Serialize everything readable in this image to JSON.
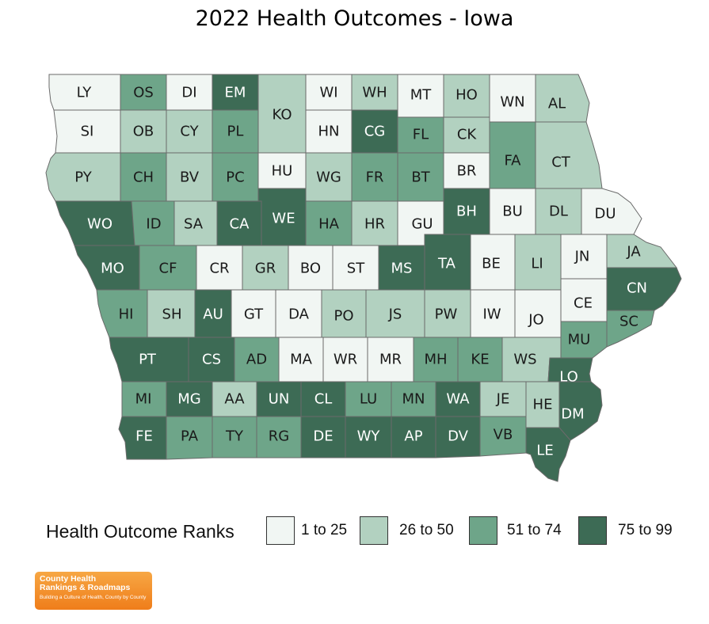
{
  "title": "2022 Health Outcomes - Iowa",
  "colors": {
    "1": "#f1f6f3",
    "2": "#b2d1c0",
    "3": "#6ea589",
    "4": "#3d6b55"
  },
  "legend": {
    "title": "Health Outcome Ranks",
    "classes": [
      {
        "label": "1 to 25",
        "color": "#f1f6f3"
      },
      {
        "label": "26 to 50",
        "color": "#b2d1c0"
      },
      {
        "label": "51 to 74",
        "color": "#6ea589"
      },
      {
        "label": "75 to 99",
        "color": "#3d6b55"
      }
    ]
  },
  "logo": {
    "line1": "County Health",
    "line2": "Rankings & Roadmaps",
    "tagline": "Building a Culture of Health, County by County"
  },
  "counties": [
    {
      "abbr": "LY",
      "cls": 1
    },
    {
      "abbr": "OS",
      "cls": 3
    },
    {
      "abbr": "DI",
      "cls": 1
    },
    {
      "abbr": "EM",
      "cls": 4
    },
    {
      "abbr": "KO",
      "cls": 2
    },
    {
      "abbr": "WI",
      "cls": 1
    },
    {
      "abbr": "WH",
      "cls": 2
    },
    {
      "abbr": "MT",
      "cls": 1
    },
    {
      "abbr": "HO",
      "cls": 2
    },
    {
      "abbr": "WN",
      "cls": 1
    },
    {
      "abbr": "AL",
      "cls": 2
    },
    {
      "abbr": "SI",
      "cls": 1
    },
    {
      "abbr": "OB",
      "cls": 2
    },
    {
      "abbr": "CY",
      "cls": 2
    },
    {
      "abbr": "PL",
      "cls": 3
    },
    {
      "abbr": "HN",
      "cls": 1
    },
    {
      "abbr": "CG",
      "cls": 4
    },
    {
      "abbr": "FL",
      "cls": 3
    },
    {
      "abbr": "CK",
      "cls": 2
    },
    {
      "abbr": "FA",
      "cls": 3
    },
    {
      "abbr": "CT",
      "cls": 2
    },
    {
      "abbr": "PY",
      "cls": 2
    },
    {
      "abbr": "CH",
      "cls": 3
    },
    {
      "abbr": "BV",
      "cls": 2
    },
    {
      "abbr": "PC",
      "cls": 3
    },
    {
      "abbr": "HU",
      "cls": 1
    },
    {
      "abbr": "WG",
      "cls": 2
    },
    {
      "abbr": "FR",
      "cls": 3
    },
    {
      "abbr": "BT",
      "cls": 3
    },
    {
      "abbr": "BR",
      "cls": 1
    },
    {
      "abbr": "WO",
      "cls": 4
    },
    {
      "abbr": "ID",
      "cls": 3
    },
    {
      "abbr": "SA",
      "cls": 2
    },
    {
      "abbr": "CA",
      "cls": 4
    },
    {
      "abbr": "WE",
      "cls": 4
    },
    {
      "abbr": "HA",
      "cls": 3
    },
    {
      "abbr": "HR",
      "cls": 2
    },
    {
      "abbr": "GU",
      "cls": 1
    },
    {
      "abbr": "BH",
      "cls": 4
    },
    {
      "abbr": "BU",
      "cls": 1
    },
    {
      "abbr": "DL",
      "cls": 2
    },
    {
      "abbr": "DU",
      "cls": 1
    },
    {
      "abbr": "MO",
      "cls": 4
    },
    {
      "abbr": "CF",
      "cls": 3
    },
    {
      "abbr": "CR",
      "cls": 1
    },
    {
      "abbr": "GR",
      "cls": 2
    },
    {
      "abbr": "BO",
      "cls": 1
    },
    {
      "abbr": "ST",
      "cls": 1
    },
    {
      "abbr": "MS",
      "cls": 4
    },
    {
      "abbr": "TA",
      "cls": 4
    },
    {
      "abbr": "BE",
      "cls": 1
    },
    {
      "abbr": "LI",
      "cls": 2
    },
    {
      "abbr": "JN",
      "cls": 1
    },
    {
      "abbr": "JA",
      "cls": 2
    },
    {
      "abbr": "CN",
      "cls": 4
    },
    {
      "abbr": "HI",
      "cls": 3
    },
    {
      "abbr": "SH",
      "cls": 2
    },
    {
      "abbr": "AU",
      "cls": 4
    },
    {
      "abbr": "GT",
      "cls": 1
    },
    {
      "abbr": "DA",
      "cls": 1
    },
    {
      "abbr": "PO",
      "cls": 2
    },
    {
      "abbr": "JS",
      "cls": 2
    },
    {
      "abbr": "PW",
      "cls": 2
    },
    {
      "abbr": "IW",
      "cls": 1
    },
    {
      "abbr": "JO",
      "cls": 1
    },
    {
      "abbr": "CE",
      "cls": 1
    },
    {
      "abbr": "SC",
      "cls": 3
    },
    {
      "abbr": "PT",
      "cls": 4
    },
    {
      "abbr": "CS",
      "cls": 4
    },
    {
      "abbr": "AD",
      "cls": 3
    },
    {
      "abbr": "MA",
      "cls": 1
    },
    {
      "abbr": "WR",
      "cls": 1
    },
    {
      "abbr": "MR",
      "cls": 1
    },
    {
      "abbr": "MH",
      "cls": 3
    },
    {
      "abbr": "KE",
      "cls": 3
    },
    {
      "abbr": "WS",
      "cls": 2
    },
    {
      "abbr": "MU",
      "cls": 3
    },
    {
      "abbr": "MI",
      "cls": 3
    },
    {
      "abbr": "MG",
      "cls": 4
    },
    {
      "abbr": "AA",
      "cls": 2
    },
    {
      "abbr": "UN",
      "cls": 4
    },
    {
      "abbr": "CL",
      "cls": 4
    },
    {
      "abbr": "LU",
      "cls": 3
    },
    {
      "abbr": "MN",
      "cls": 3
    },
    {
      "abbr": "WA",
      "cls": 4
    },
    {
      "abbr": "JE",
      "cls": 2
    },
    {
      "abbr": "HE",
      "cls": 2
    },
    {
      "abbr": "LO",
      "cls": 4
    },
    {
      "abbr": "FE",
      "cls": 4
    },
    {
      "abbr": "PA",
      "cls": 3
    },
    {
      "abbr": "TY",
      "cls": 3
    },
    {
      "abbr": "RG",
      "cls": 3
    },
    {
      "abbr": "DE",
      "cls": 4
    },
    {
      "abbr": "WY",
      "cls": 4
    },
    {
      "abbr": "AP",
      "cls": 4
    },
    {
      "abbr": "DV",
      "cls": 4
    },
    {
      "abbr": "VB",
      "cls": 3
    },
    {
      "abbr": "DM",
      "cls": 4
    },
    {
      "abbr": "LE",
      "cls": 4
    }
  ]
}
